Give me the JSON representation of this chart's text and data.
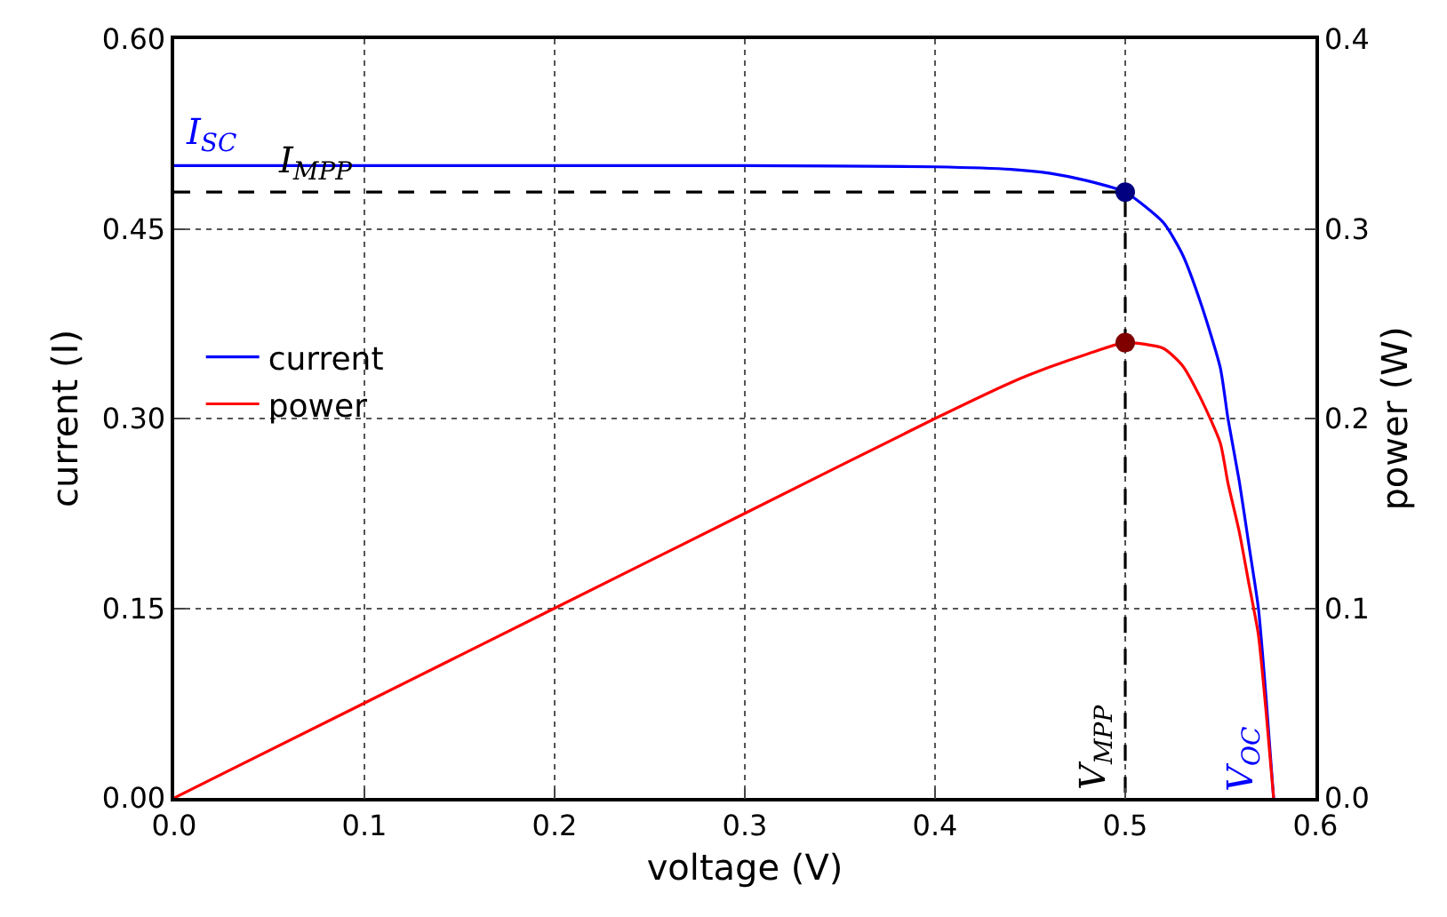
{
  "chart_data": {
    "type": "line",
    "xlabel": "voltage (V)",
    "ylabel": "current (I)",
    "y2label": "power (W)",
    "xlim": [
      0.0,
      0.6
    ],
    "xticks": [
      {
        "value": 0,
        "label": "0.0"
      },
      0.1,
      0.2,
      0.3,
      0.4,
      0.5,
      0.6
    ],
    "ylim": [
      0,
      0.6
    ],
    "yticks": [
      {
        "value": 0,
        "label": "0.00"
      },
      {
        "value": 0.15,
        "label": "0.15"
      },
      {
        "value": 0.3,
        "label": "0.30"
      },
      {
        "value": 0.45,
        "label": "0.45"
      },
      {
        "value": 0.6,
        "label": "0.60"
      }
    ],
    "y2lim": [
      0,
      0.4
    ],
    "y2ticks": [
      {
        "value": 0,
        "label": "0.0"
      },
      0.1,
      0.2,
      0.3,
      0.4
    ],
    "grid": true,
    "legend": "left",
    "marker": "none",
    "series": [
      {
        "name": "current",
        "color": "#0000ff",
        "x": [
          0,
          0.1,
          0.2,
          0.3,
          0.4,
          0.44,
          0.46,
          0.48,
          0.5,
          0.52,
          0.53,
          0.54,
          0.55,
          0.554,
          0.56,
          0.565,
          0.57,
          0.574,
          0.578
        ],
        "values": [
          0.5,
          0.5,
          0.5,
          0.5,
          0.499,
          0.497,
          0.494,
          0.488,
          0.479,
          0.455,
          0.43,
          0.39,
          0.34,
          0.3,
          0.25,
          0.2,
          0.15,
          0.08,
          0
        ]
      },
      {
        "name": "power",
        "color": "#ff0000",
        "axis": "y2",
        "x": [
          0,
          0.1,
          0.2,
          0.3,
          0.4,
          0.44,
          0.46,
          0.48,
          0.5,
          0.52,
          0.53,
          0.54,
          0.55,
          0.554,
          0.56,
          0.565,
          0.57,
          0.574,
          0.578
        ],
        "values": [
          0,
          0.05,
          0.1,
          0.15,
          0.2,
          0.219,
          0.227,
          0.234,
          0.24,
          0.237,
          0.228,
          0.21,
          0.187,
          0.166,
          0.14,
          0.113,
          0.086,
          0.046,
          0
        ]
      },
      {
        "color": "#000000",
        "line_style": "dashed",
        "x": [
          0,
          0.5,
          0.5
        ],
        "values": [
          0.479,
          0.479,
          0
        ]
      },
      {
        "type": "scatter",
        "marker": "circle",
        "color": "#000080",
        "x": [
          0.5
        ],
        "values": [
          0.479
        ]
      },
      {
        "type": "scatter",
        "marker": "circle",
        "color": "#800000",
        "axis": "y2",
        "x": [
          0.5
        ],
        "values": [
          0.24
        ]
      }
    ],
    "annotations": [
      {
        "text": "I$_{SC}$",
        "x": 0.0,
        "y": 0.5
      },
      {
        "text": "I$_{MPP}$",
        "x": 0.05,
        "y": 0.479
      },
      {
        "text": "V$_{MPP}$",
        "x": 0.5,
        "y": 0
      },
      {
        "text": "V$_{OC}$",
        "x": 0.578,
        "y": 0
      }
    ]
  }
}
